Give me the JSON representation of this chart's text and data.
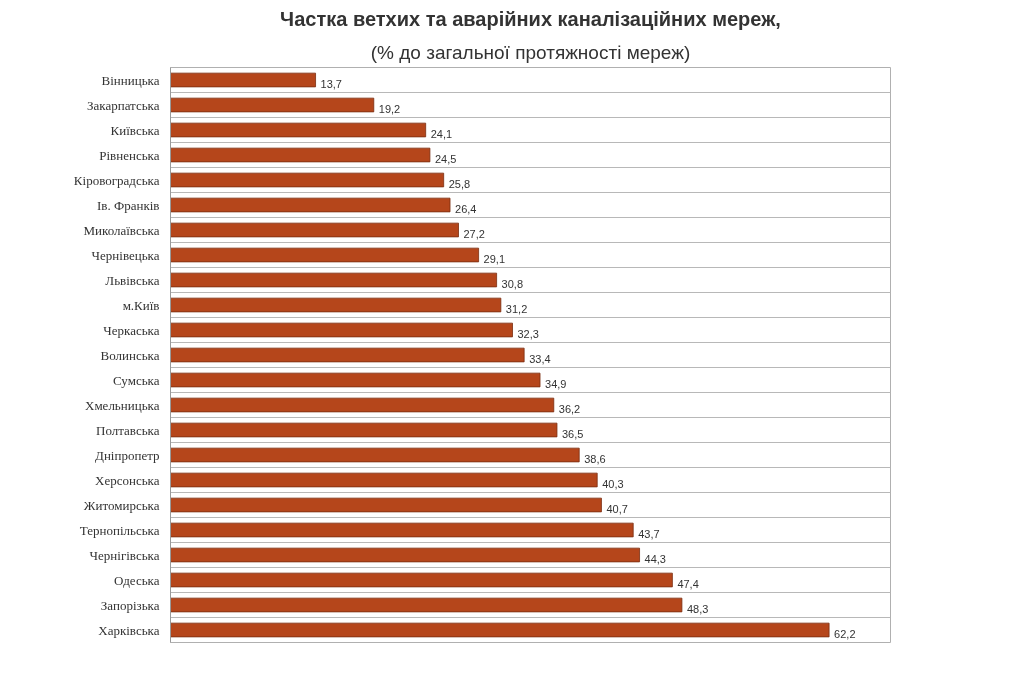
{
  "chart_data": {
    "type": "bar",
    "orientation": "horizontal",
    "title": "Частка ветхих та аварійних каналізаційних мереж,",
    "subtitle": "(% до загальної протяжності мереж)",
    "categories": [
      "Вінницька",
      "Закарпатська",
      "Київська",
      "Рівненська",
      "Кіровоградська",
      "Ів. Франків",
      "Миколаївська",
      "Чернівецька",
      "Львівська",
      "м.Київ",
      "Черкаська",
      "Волинська",
      "Сумська",
      "Хмельницька",
      "Полтавська",
      "Дніпропетр",
      "Херсонська",
      "Житомирська",
      "Тернопільська",
      "Чернігівська",
      "Одеська",
      "Запорізька",
      "Харківська"
    ],
    "values": [
      13.7,
      19.2,
      24.1,
      24.5,
      25.8,
      26.4,
      27.2,
      29.1,
      30.8,
      31.2,
      32.3,
      33.4,
      34.9,
      36.2,
      36.5,
      38.6,
      40.3,
      40.7,
      43.7,
      44.3,
      47.4,
      48.3,
      62.2
    ],
    "value_labels": [
      "13,7",
      "19,2",
      "24,1",
      "24,5",
      "25,8",
      "26,4",
      "27,2",
      "29,1",
      "30,8",
      "31,2",
      "32,3",
      "33,4",
      "34,9",
      "36,2",
      "36,5",
      "38,6",
      "40,3",
      "40,7",
      "43,7",
      "44,3",
      "47,4",
      "48,3",
      "62,2"
    ],
    "color": "#b5461b",
    "xlim": [
      0,
      68
    ],
    "grid": "y",
    "tick_labels": "y"
  }
}
